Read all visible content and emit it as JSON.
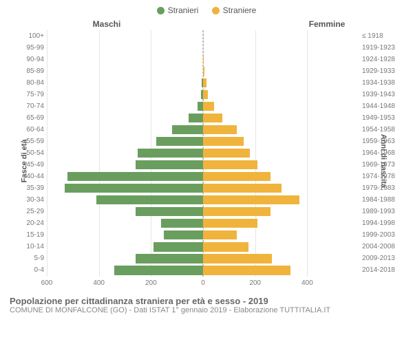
{
  "legend": {
    "male": {
      "label": "Stranieri",
      "color": "#6a9e5f"
    },
    "female": {
      "label": "Straniere",
      "color": "#f0b43c"
    }
  },
  "headers": {
    "male": "Maschi",
    "female": "Femmine"
  },
  "axes": {
    "left_label": "Fasce di età",
    "right_label": "Anni di nascita",
    "xmax": 600,
    "xticks_left": [
      600,
      400,
      200,
      0
    ],
    "xticks_right": [
      0,
      200,
      400
    ],
    "grid_color": "#e5e5e5",
    "centerline_color": "#888888"
  },
  "chart": {
    "type": "population-pyramid",
    "background_color": "#ffffff",
    "bar_fill_ratio": 0.78,
    "rows": [
      {
        "age": "100+",
        "birth": "≤ 1918",
        "m": 0,
        "f": 0
      },
      {
        "age": "95-99",
        "birth": "1919-1923",
        "m": 0,
        "f": 0
      },
      {
        "age": "90-94",
        "birth": "1924-1928",
        "m": 0,
        "f": 2
      },
      {
        "age": "85-89",
        "birth": "1929-1933",
        "m": 0,
        "f": 5
      },
      {
        "age": "80-84",
        "birth": "1934-1938",
        "m": 5,
        "f": 12
      },
      {
        "age": "75-79",
        "birth": "1939-1943",
        "m": 8,
        "f": 18
      },
      {
        "age": "70-74",
        "birth": "1944-1948",
        "m": 22,
        "f": 42
      },
      {
        "age": "65-69",
        "birth": "1949-1953",
        "m": 55,
        "f": 75
      },
      {
        "age": "60-64",
        "birth": "1954-1958",
        "m": 120,
        "f": 130
      },
      {
        "age": "55-59",
        "birth": "1959-1963",
        "m": 180,
        "f": 155
      },
      {
        "age": "50-54",
        "birth": "1964-1968",
        "m": 250,
        "f": 180
      },
      {
        "age": "45-49",
        "birth": "1969-1973",
        "m": 260,
        "f": 210
      },
      {
        "age": "40-44",
        "birth": "1974-1978",
        "m": 520,
        "f": 260
      },
      {
        "age": "35-39",
        "birth": "1979-1983",
        "m": 530,
        "f": 300
      },
      {
        "age": "30-34",
        "birth": "1984-1988",
        "m": 410,
        "f": 370
      },
      {
        "age": "25-29",
        "birth": "1989-1993",
        "m": 260,
        "f": 260
      },
      {
        "age": "20-24",
        "birth": "1994-1998",
        "m": 160,
        "f": 210
      },
      {
        "age": "15-19",
        "birth": "1999-2003",
        "m": 150,
        "f": 130
      },
      {
        "age": "10-14",
        "birth": "2004-2008",
        "m": 190,
        "f": 175
      },
      {
        "age": "5-9",
        "birth": "2009-2013",
        "m": 260,
        "f": 265
      },
      {
        "age": "0-4",
        "birth": "2014-2018",
        "m": 340,
        "f": 335
      }
    ]
  },
  "footer": {
    "title": "Popolazione per cittadinanza straniera per età e sesso - 2019",
    "subtitle": "COMUNE DI MONFALCONE (GO) - Dati ISTAT 1° gennaio 2019 - Elaborazione TUTTITALIA.IT"
  }
}
